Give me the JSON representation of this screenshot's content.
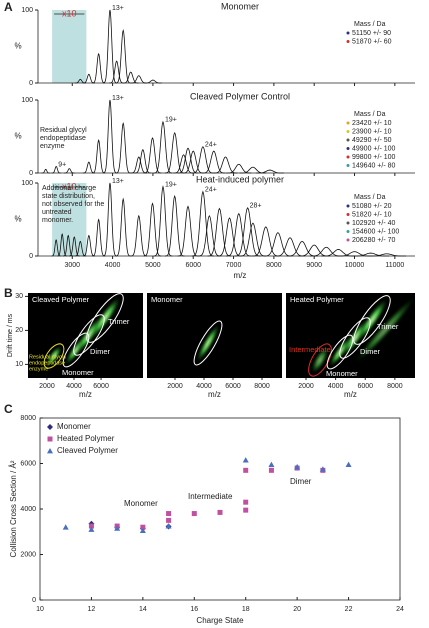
{
  "panel_a": {
    "label": "A",
    "xlabel": "m/z",
    "ylabel": "%",
    "xlim": [
      2150,
      11500
    ],
    "xticks": [
      3000,
      4000,
      5000,
      6000,
      7000,
      8000,
      9000,
      10000,
      11000
    ],
    "spectra": [
      {
        "title": "Monomer",
        "ylim": [
          0,
          100
        ],
        "yticks": [
          0,
          100
        ],
        "zoom_label": "x10",
        "zoom_range": [
          2500,
          3350
        ],
        "legend_title": "Mass / Da",
        "legend": [
          {
            "label": "51150 +/- 90",
            "color": "#2d2e83"
          },
          {
            "label": "51870 +/- 60",
            "color": "#d03030"
          }
        ],
        "peaks": {
          "x": [
            3200,
            3411,
            3654,
            3935,
            4100,
            4263,
            4450,
            4650,
            5000
          ],
          "y": [
            5,
            12,
            40,
            100,
            30,
            72,
            15,
            10,
            4
          ],
          "labels": [
            null,
            null,
            null,
            "13+",
            null,
            null,
            null,
            null,
            null
          ]
        }
      },
      {
        "title": "Cleaved Polymer Control",
        "ylim": [
          0,
          100
        ],
        "yticks": [
          0,
          100
        ],
        "legend_title": "Mass / Da",
        "legend": [
          {
            "label": "23420 +/- 10",
            "color": "#e8a020"
          },
          {
            "label": "23900 +/- 10",
            "color": "#d8c820"
          },
          {
            "label": "49290 +/- 50",
            "color": "#555555"
          },
          {
            "label": "49900 +/- 100",
            "color": "#2d2e83"
          },
          {
            "label": "99800 +/- 100",
            "color": "#d03030"
          },
          {
            "label": "149640 +/- 80",
            "color": "#30a0a0"
          }
        ],
        "note": [
          "Residual glycyl",
          "endopeptidase",
          "enzyme"
        ],
        "peaks": {
          "x": [
            2342,
            2602,
            2928,
            3411,
            3654,
            3935,
            4263,
            4650,
            4750,
            4990,
            5250,
            5540,
            5760,
            5870,
            6000,
            6240,
            6510,
            6800,
            7130,
            7480,
            7900
          ],
          "y": [
            5,
            9,
            6,
            15,
            45,
            100,
            68,
            22,
            32,
            48,
            70,
            55,
            25,
            34,
            30,
            36,
            30,
            22,
            12,
            8,
            4
          ],
          "labels": [
            null,
            "9+",
            null,
            null,
            null,
            "13+",
            null,
            null,
            null,
            null,
            "19+",
            null,
            null,
            null,
            null,
            "24+",
            null,
            null,
            null,
            null,
            null
          ]
        }
      },
      {
        "title": "Heat-induced polymer",
        "ylim": [
          0,
          100
        ],
        "yticks": [
          0,
          100
        ],
        "zoom_label": "x10",
        "zoom_range": [
          2500,
          3350
        ],
        "legend_title": "Mass / Da",
        "legend": [
          {
            "label": "51080 +/- 20",
            "color": "#2d2e83"
          },
          {
            "label": "51820 +/- 10",
            "color": "#d03030"
          },
          {
            "label": "102920 +/- 40",
            "color": "#555555"
          },
          {
            "label": "154600 +/- 100",
            "color": "#30a0a0"
          },
          {
            "label": "206280 +/- 70",
            "color": "#c050a0"
          }
        ],
        "note": [
          "Additional charge",
          "state distribution,",
          "not observed for the",
          "untreated",
          "monomer."
        ],
        "peaks": {
          "x": [
            2600,
            2750,
            2900,
            3050,
            3200,
            3411,
            3654,
            3935,
            4263,
            4650,
            4990,
            5250,
            5540,
            5870,
            6240,
            6400,
            6650,
            6900,
            7130,
            7350,
            7480,
            7800,
            8100,
            8400,
            8700,
            9000,
            9300,
            9600,
            10000,
            10400,
            10800
          ],
          "y": [
            22,
            30,
            28,
            26,
            20,
            28,
            50,
            100,
            78,
            55,
            72,
            95,
            82,
            68,
            88,
            55,
            65,
            52,
            58,
            66,
            45,
            40,
            32,
            25,
            20,
            15,
            12,
            9,
            6,
            4,
            3
          ],
          "labels": [
            null,
            null,
            null,
            null,
            null,
            null,
            null,
            "13+",
            null,
            null,
            null,
            "19+",
            null,
            null,
            "24+",
            null,
            null,
            null,
            null,
            "28+",
            null,
            null,
            null,
            null,
            null,
            null,
            null,
            null,
            null,
            null,
            null
          ]
        }
      }
    ]
  },
  "panel_b": {
    "label": "B",
    "ylabel": "Drift time / ms",
    "ylim": [
      6,
      31
    ],
    "yticks": [
      10,
      20,
      30
    ],
    "panels": [
      {
        "title": "Cleaved Polymer",
        "xlabel": "m/z",
        "xlim": [
          600,
          9100
        ],
        "xticks": [
          2000,
          4000,
          6000
        ],
        "annotations": {
          "enzyme": [
            "Residual glycyl",
            "endopeptidase",
            "enzyme"
          ],
          "monomer": "Monomer",
          "dimer": "Dimer",
          "trimer": "Trimer"
        }
      },
      {
        "title": "Monomer",
        "xlabel": "m/z",
        "xlim": [
          70,
          9380
        ],
        "xticks": [
          2000,
          4000,
          6000,
          8000
        ]
      },
      {
        "title": "Heated Polymer",
        "xlabel": "m/z",
        "xlim": [
          650,
          9360
        ],
        "xticks": [
          2000,
          4000,
          6000,
          8000
        ],
        "annotations": {
          "intermediate": "Intermediate",
          "monomer": "Monomer",
          "dimer": "Dimer",
          "trimer": "Trimer"
        }
      }
    ]
  },
  "chart_data": {
    "type": "scatter",
    "label": "C",
    "xlabel": "Charge State",
    "ylabel": "Collision Cross Section / Å²",
    "xlim": [
      10,
      24
    ],
    "xticks": [
      10,
      12,
      14,
      16,
      18,
      20,
      22,
      24
    ],
    "ylim": [
      0,
      8000
    ],
    "yticks": [
      0,
      2000,
      4000,
      6000,
      8000
    ],
    "series": [
      {
        "name": "Monomer",
        "color": "#2d2e83",
        "marker": "diamond",
        "x": [
          12,
          13,
          14,
          15
        ],
        "values": [
          3350,
          3200,
          3150,
          3230
        ]
      },
      {
        "name": "Heated Polymer",
        "color": "#c050a0",
        "marker": "square",
        "x": [
          12,
          13,
          14,
          15,
          15,
          16,
          17,
          18,
          18,
          18,
          19,
          20,
          21
        ],
        "values": [
          3250,
          3250,
          3200,
          3500,
          3800,
          3800,
          3850,
          3950,
          4300,
          5700,
          5700,
          5800,
          5700
        ]
      },
      {
        "name": "Cleaved Polymer",
        "color": "#4a6fc0",
        "marker": "triangle",
        "x": [
          11,
          12,
          13,
          14,
          15,
          18,
          19,
          20,
          21,
          22
        ],
        "values": [
          3200,
          3100,
          3150,
          3050,
          3250,
          6150,
          5950,
          5850,
          5750,
          5950
        ]
      }
    ],
    "annotations": [
      "Monomer",
      "Intermediate",
      "Dimer"
    ]
  }
}
